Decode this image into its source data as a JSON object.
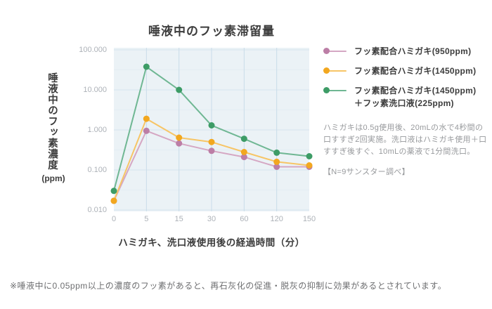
{
  "chart": {
    "title": "唾液中のフッ素滞留量",
    "y_axis_title": "唾液中のフッ素濃度",
    "y_axis_unit": "(ppm)",
    "x_axis_title": "ハミガキ、洗口液使用後の経過時間（分）"
  },
  "chart_data": {
    "type": "line",
    "title": "唾液中のフッ素滞留量",
    "xlabel": "ハミガキ、洗口液使用後の経過時間（分）",
    "ylabel": "唾液中のフッ素濃度 (ppm)",
    "x_scale": "category",
    "y_scale": "log",
    "ylim": [
      0.01,
      100
    ],
    "grid": true,
    "legend_position": "right",
    "plot_bg": "#ebf2f6",
    "categories": [
      "0",
      "5",
      "15",
      "30",
      "60",
      "120",
      "150"
    ],
    "ytick_labels": [
      "100.000",
      "10.000",
      "1.000",
      "0.100",
      "0.010"
    ],
    "series": [
      {
        "name": "フッ素配合ハミガキ(950ppm)",
        "label_lines": [
          "フッ素配合ハミガキ(950ppm)"
        ],
        "dot_color": "#bc7ea6",
        "line_color": "#d5a7c3",
        "values": [
          0.017,
          0.95,
          0.46,
          0.3,
          0.21,
          0.12,
          0.12
        ]
      },
      {
        "name": "フッ素配合ハミガキ(1450ppm)",
        "label_lines": [
          "フッ素配合ハミガキ(1450ppm)"
        ],
        "dot_color": "#f2a71f",
        "line_color": "#f7c566",
        "values": [
          0.017,
          1.9,
          0.64,
          0.5,
          0.28,
          0.16,
          0.13
        ]
      },
      {
        "name": "フッ素配合ハミガキ(1450ppm)＋フッ素洗口液(225ppm)",
        "label_lines": [
          "フッ素配合ハミガキ(1450ppm)",
          "＋フッ素洗口液(225ppm)"
        ],
        "dot_color": "#3d9c66",
        "line_color": "#6fb793",
        "values": [
          0.03,
          38,
          10,
          1.3,
          0.6,
          0.27,
          0.22
        ]
      }
    ]
  },
  "notes": {
    "method": "ハミガキは0.5g使用後、20mLの水で4秒間の口すすぎ2回実施。洗口液はハミガキ使用＋口すすぎ後すぐ、10mLの薬液で1分間洗口。",
    "sample": "【N=9サンスター調べ】",
    "footnote": "※唾液中に0.05ppm以上の濃度のフッ素があると、再石灰化の促進・脱灰の抑制に効果があるとされています。"
  }
}
